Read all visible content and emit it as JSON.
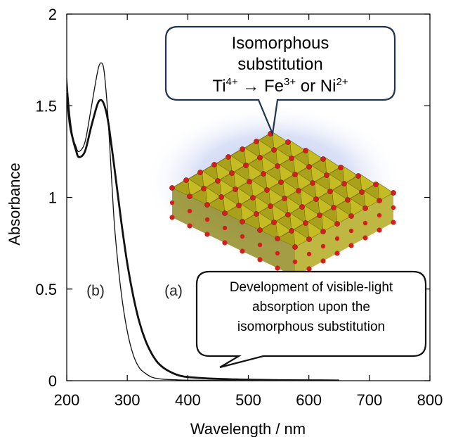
{
  "chart_data": {
    "type": "line",
    "xlabel": "Wavelength / nm",
    "ylabel": "Absorbance",
    "xlim": [
      200,
      800
    ],
    "ylim": [
      0,
      2
    ],
    "x_ticks": [
      "200",
      "300",
      "400",
      "500",
      "600",
      "700",
      "800"
    ],
    "y_ticks": [
      "0",
      "0.5",
      "1",
      "1.5",
      "2"
    ],
    "grid": false,
    "series": [
      {
        "name": "(a)",
        "x": [
          200,
          205,
          210,
          215,
          220,
          230,
          240,
          250,
          255,
          260,
          265,
          270,
          280,
          290,
          300,
          310,
          320,
          330,
          340,
          350,
          360,
          370,
          380,
          390,
          400,
          420,
          450,
          480,
          500,
          550,
          600,
          650
        ],
        "y": [
          1.57,
          1.4,
          1.32,
          1.26,
          1.22,
          1.25,
          1.38,
          1.5,
          1.53,
          1.52,
          1.47,
          1.38,
          1.13,
          0.87,
          0.64,
          0.46,
          0.32,
          0.22,
          0.15,
          0.1,
          0.07,
          0.05,
          0.035,
          0.025,
          0.02,
          0.015,
          0.01,
          0.007,
          0.005,
          0.003,
          0.002,
          0.001
        ]
      },
      {
        "name": "(b)",
        "x": [
          200,
          205,
          210,
          215,
          220,
          230,
          240,
          250,
          255,
          260,
          263,
          268,
          275,
          280,
          290,
          300,
          310,
          320,
          330,
          340,
          350,
          360,
          380,
          400,
          450,
          500,
          550,
          600,
          650
        ],
        "y": [
          1.65,
          1.45,
          1.33,
          1.28,
          1.25,
          1.3,
          1.48,
          1.67,
          1.73,
          1.72,
          1.65,
          1.45,
          1.05,
          0.8,
          0.48,
          0.27,
          0.14,
          0.07,
          0.04,
          0.02,
          0.012,
          0.008,
          0.005,
          0.003,
          0.002,
          0.001,
          0.0005,
          0.0003,
          0.0002
        ]
      }
    ],
    "annotations": {
      "curve_a_label": "(a)",
      "curve_b_label": "(b)",
      "callout_top": {
        "line1": "Isomorphous",
        "line2": "substitution",
        "line3_ti": "Ti",
        "line3_ti_sup": "4+",
        "line3_arrow": " → ",
        "line3_fe": "Fe",
        "line3_fe_sup": "3+",
        "line3_or": " or ",
        "line3_ni": "Ni",
        "line3_ni_sup": "2+"
      },
      "callout_bottom": {
        "line1": "Development of visible-light",
        "line2": "absorption upon the",
        "line3": "isomorphous substitution"
      }
    },
    "colors": {
      "curve": "#111111",
      "callout_border": "#1f3550",
      "glow": "#a9b8e6",
      "octahedron_face": "#d8d12a",
      "octahedron_dark": "#8c8618",
      "atom": "#d41f1f"
    }
  }
}
